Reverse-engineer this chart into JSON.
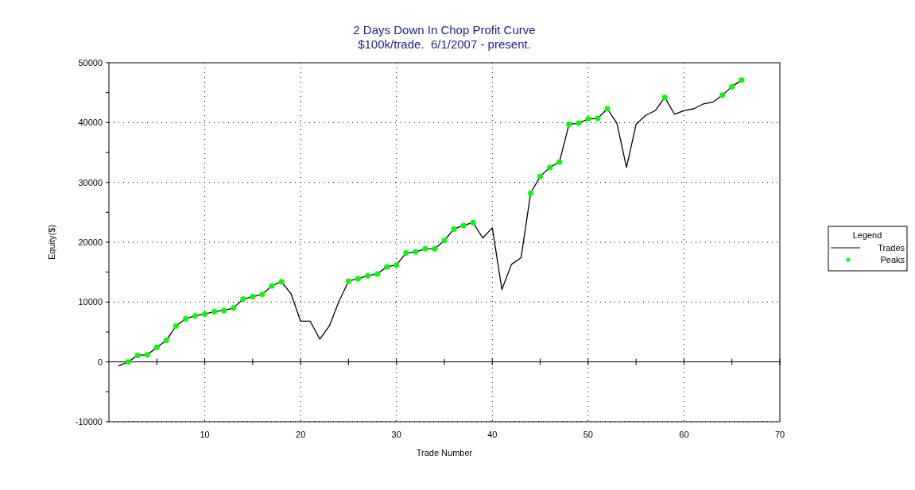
{
  "chart_data": {
    "type": "line",
    "title": "2 Days Down In Chop Profit Curve",
    "subtitle": "$100k/trade.  6/1/2007 - present.",
    "xlabel": "Trade Number",
    "ylabel": "Equity($)",
    "xlim": [
      0,
      70
    ],
    "ylim": [
      -10000,
      50000
    ],
    "xticks": [
      {
        "value": 5,
        "label": null
      },
      10,
      {
        "value": 15,
        "label": null
      },
      20,
      {
        "value": 25,
        "label": null
      },
      30,
      {
        "value": 35,
        "label": null
      },
      40,
      {
        "value": 45,
        "label": null
      },
      50,
      {
        "value": 55,
        "label": null
      },
      60,
      {
        "value": 65,
        "label": null
      },
      70
    ],
    "yticks": [
      -10000,
      {
        "value": -5000,
        "label": null
      },
      0,
      {
        "value": 5000,
        "label": null
      },
      10000,
      {
        "value": 15000,
        "label": null
      },
      20000,
      {
        "value": 25000,
        "label": null
      },
      30000,
      {
        "value": 35000,
        "label": null
      },
      40000,
      {
        "value": 45000,
        "label": null
      },
      50000
    ],
    "grid": true,
    "legend": "right",
    "legend_title": "Legend",
    "series": [
      {
        "name": "Trades",
        "color": "#000000",
        "marker": "none",
        "x": [
          1,
          2,
          3,
          4,
          5,
          6,
          7,
          8,
          9,
          10,
          11,
          12,
          13,
          14,
          15,
          16,
          17,
          18,
          19,
          20,
          21,
          22,
          23,
          24,
          25,
          26,
          27,
          28,
          29,
          30,
          31,
          32,
          33,
          34,
          35,
          36,
          37,
          38,
          39,
          40,
          41,
          42,
          43,
          44,
          45,
          46,
          47,
          48,
          49,
          50,
          51,
          52,
          53,
          54,
          55,
          56,
          57,
          58,
          59,
          60,
          61,
          62,
          63,
          64,
          65,
          66
        ],
        "values": [
          -700,
          0,
          1100,
          1200,
          2400,
          3600,
          6000,
          7200,
          7700,
          8000,
          8400,
          8600,
          9000,
          10500,
          10900,
          11300,
          12700,
          13400,
          11400,
          6800,
          6800,
          3800,
          6000,
          10100,
          13500,
          13900,
          14400,
          14700,
          15900,
          16200,
          18200,
          18400,
          18900,
          18900,
          20300,
          22200,
          22800,
          23300,
          20700,
          22400,
          12100,
          16300,
          17400,
          28200,
          31000,
          32500,
          33400,
          39700,
          39900,
          40600,
          40700,
          42300,
          39900,
          32500,
          39700,
          41200,
          42000,
          44200,
          41400,
          42000,
          42300,
          43100,
          43400,
          44600,
          46000,
          47100
        ]
      },
      {
        "name": "Peaks",
        "type": "scatter",
        "color": "#00ff00",
        "marker": "circle",
        "x": [
          2,
          3,
          4,
          5,
          6,
          7,
          8,
          9,
          10,
          11,
          12,
          13,
          14,
          15,
          16,
          17,
          18,
          25,
          26,
          27,
          28,
          29,
          30,
          31,
          32,
          33,
          34,
          35,
          36,
          37,
          38,
          44,
          45,
          46,
          47,
          48,
          49,
          50,
          51,
          52,
          58,
          64,
          65,
          66
        ],
        "values": [
          0,
          1100,
          1200,
          2400,
          3600,
          6000,
          7200,
          7700,
          8000,
          8400,
          8600,
          9000,
          10500,
          10900,
          11300,
          12700,
          13400,
          13500,
          13900,
          14400,
          14700,
          15900,
          16200,
          18200,
          18400,
          18900,
          18900,
          20300,
          22200,
          22800,
          23300,
          28200,
          31000,
          32500,
          33400,
          39700,
          39900,
          40600,
          40700,
          42300,
          44200,
          44600,
          46000,
          47100
        ]
      }
    ]
  }
}
